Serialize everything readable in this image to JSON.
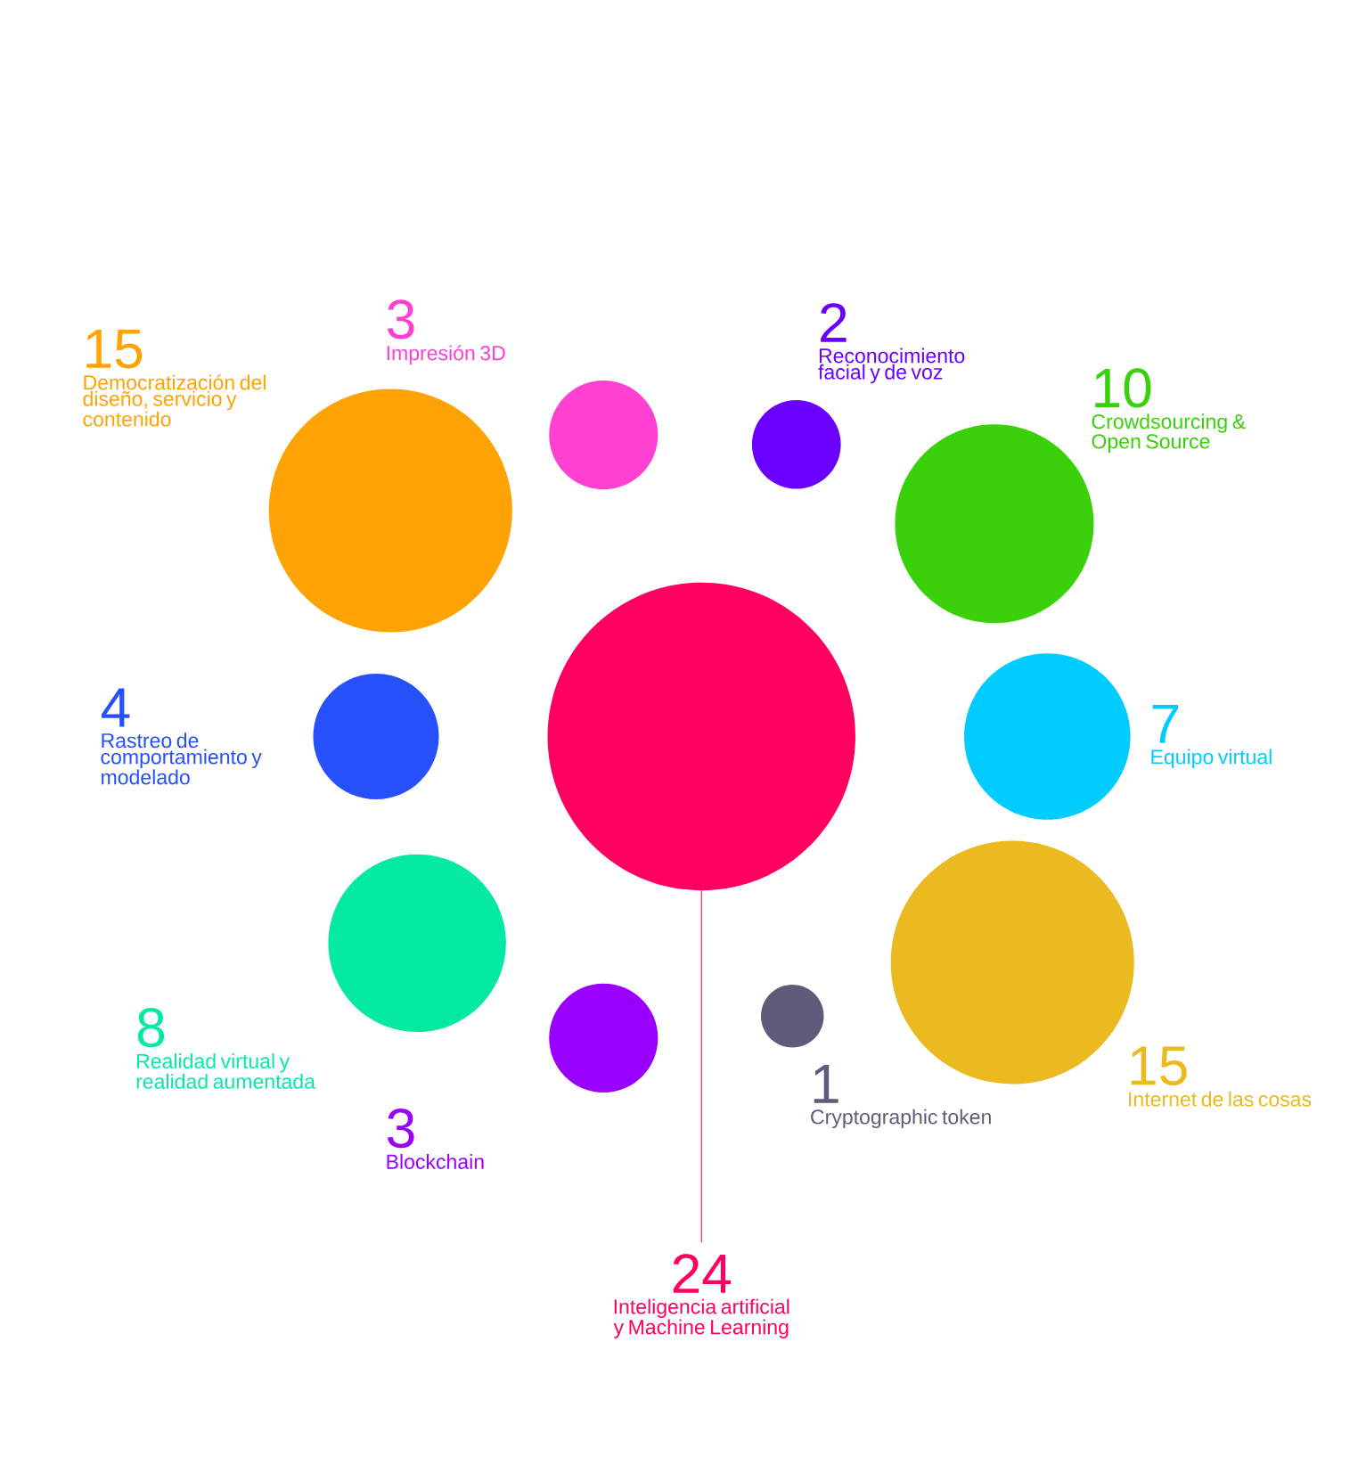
{
  "chart_data": {
    "type": "other",
    "categories": [
      "Inteligencia artificial y Machine Learning",
      "Reconocimiento facial y de voz",
      "Crowdsourcing & Open Source",
      "Equipo virtual",
      "Internet de las cosas",
      "Cryptographic token",
      "Blockchain",
      "Realidad virtual y realidad aumentada",
      "Rastreo de comportamiento y modelado",
      "Democratización del diseño, servicio y contenido",
      "Impresión 3D"
    ],
    "values": [
      24,
      2,
      10,
      7,
      15,
      1,
      3,
      8,
      4,
      15,
      3
    ],
    "colors": [
      "#ff0060",
      "#6a00ff",
      "#3ad10a",
      "#00ccff",
      "#eaba20",
      "#5e5c7a",
      "#9a00ff",
      "#05eaa3",
      "#2651fa",
      "#ffa305",
      "#ff40d0"
    ],
    "data_labels": true
  }
}
